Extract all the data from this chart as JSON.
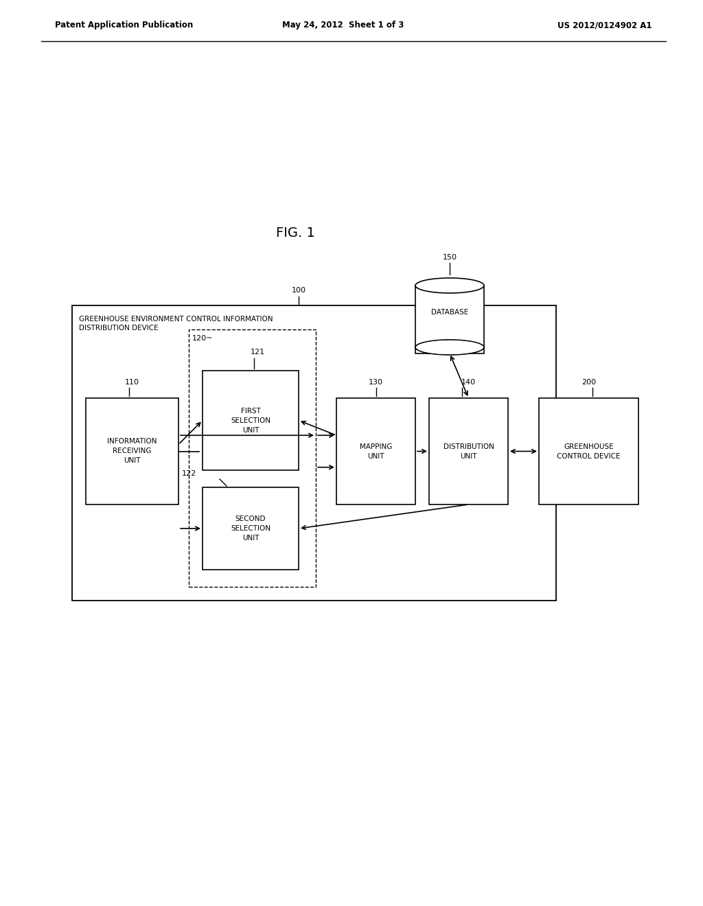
{
  "bg_color": "#ffffff",
  "header_left": "Patent Application Publication",
  "header_center": "May 24, 2012  Sheet 1 of 3",
  "header_right": "US 2012/0124902 A1",
  "fig_label": "FIG. 1",
  "outer_box_label": "GREENHOUSE ENVIRONMENT CONTROL INFORMATION\nDISTRIBUTION DEVICE",
  "label_100": "100",
  "label_150": "150",
  "label_110": "110",
  "label_120": "120",
  "label_121": "121",
  "label_122": "122",
  "label_130": "130",
  "label_140": "140",
  "label_200": "200",
  "box_info_recv": "INFORMATION\nRECEIVING\nUNIT",
  "box_first_sel": "FIRST\nSELECTION\nUNIT",
  "box_second_sel": "SECOND\nSELECTION\nUNIT",
  "box_mapping": "MAPPING\nUNIT",
  "box_dist": "DISTRIBUTION\nUNIT",
  "box_greenhouse": "GREENHOUSE\nCONTROL DEVICE",
  "db_label": "DATABASE",
  "line_color": "#000000",
  "text_color": "#000000",
  "box_fill": "#ffffff"
}
